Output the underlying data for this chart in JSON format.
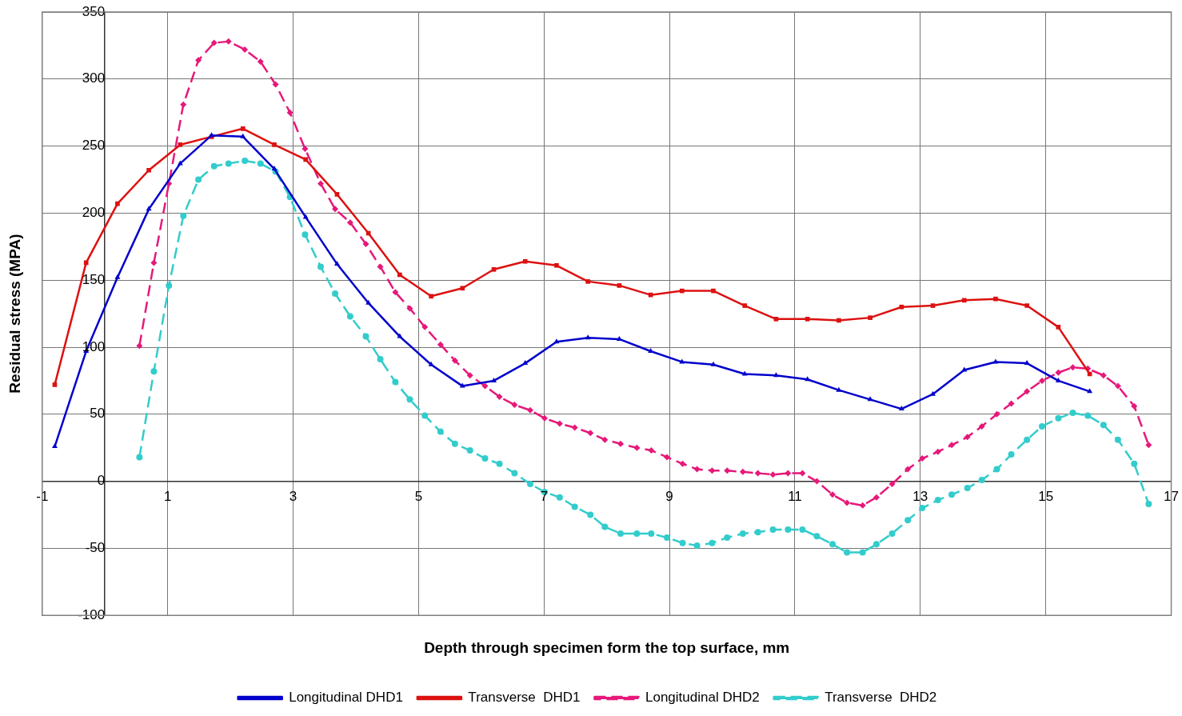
{
  "chart_data": {
    "type": "line",
    "xlabel": "Depth through specimen form the top surface, mm",
    "ylabel": "Residual stress (MPA)",
    "xlim": [
      -1,
      17
    ],
    "xticks": [
      -1,
      1,
      3,
      5,
      7,
      9,
      11,
      13,
      15,
      17
    ],
    "ylim": [
      -100,
      350
    ],
    "yticks": [
      -100,
      -50,
      0,
      50,
      100,
      150,
      200,
      250,
      300,
      350
    ],
    "grid": true,
    "legend": "bottom",
    "series": [
      {
        "name": "Longitudinal DHD1",
        "color": "#0000cc",
        "marker": "triangle",
        "line_style": "solid",
        "x": [
          -0.8,
          -0.3,
          0.2,
          0.7,
          1.2,
          1.7,
          2.2,
          2.7,
          3.2,
          3.7,
          4.2,
          4.7,
          5.2,
          5.7,
          6.2,
          6.7,
          7.2,
          7.7,
          8.2,
          8.7,
          9.2,
          9.7,
          10.2,
          10.7,
          11.2,
          11.7,
          12.2,
          12.7,
          13.2,
          13.7,
          14.2,
          14.7,
          15.2,
          15.7
        ],
        "values": [
          26,
          97,
          152,
          203,
          237,
          258,
          257,
          233,
          197,
          162,
          133,
          108,
          87,
          71,
          75,
          88,
          104,
          107,
          106,
          97,
          89,
          87,
          80,
          79,
          76,
          68,
          61,
          54,
          65,
          83,
          89,
          88,
          75,
          67
        ]
      },
      {
        "name": "Transverse  DHD1",
        "color": "#dd1111",
        "marker": "square",
        "line_style": "solid",
        "x": [
          -0.8,
          -0.3,
          0.2,
          0.7,
          1.2,
          1.7,
          2.2,
          2.7,
          3.2,
          3.7,
          4.2,
          4.7,
          5.2,
          5.7,
          6.2,
          6.7,
          7.2,
          7.7,
          8.2,
          8.7,
          9.2,
          9.7,
          10.2,
          10.7,
          11.2,
          11.7,
          12.2,
          12.7,
          13.2,
          13.7,
          14.2,
          14.7,
          15.2,
          15.7
        ],
        "values": [
          72,
          163,
          207,
          232,
          251,
          257,
          263,
          251,
          240,
          214,
          185,
          154,
          138,
          144,
          158,
          164,
          161,
          149,
          146,
          139,
          142,
          142,
          131,
          121,
          121,
          120,
          122,
          130,
          131,
          135,
          136,
          131,
          115,
          80
        ]
      },
      {
        "name": "Longitudinal DHD2",
        "color": "#e6197a",
        "marker": "diamond",
        "line_style": "dashed",
        "x": [
          0.55,
          0.78,
          1.02,
          1.25,
          1.49,
          1.74,
          1.97,
          2.23,
          2.48,
          2.72,
          2.95,
          3.19,
          3.44,
          3.67,
          3.91,
          4.16,
          4.39,
          4.63,
          4.86,
          5.1,
          5.35,
          5.58,
          5.82,
          6.06,
          6.29,
          6.53,
          6.78,
          7.01,
          7.25,
          7.49,
          7.74,
          7.97,
          8.22,
          8.48,
          8.71,
          8.96,
          9.21,
          9.44,
          9.68,
          9.92,
          10.17,
          10.41,
          10.65,
          10.89,
          11.12,
          11.35,
          11.6,
          11.83,
          12.08,
          12.3,
          12.55,
          12.8,
          13.03,
          13.28,
          13.5,
          13.75,
          13.98,
          14.22,
          14.45,
          14.7,
          14.94,
          15.2,
          15.43,
          15.67,
          15.92,
          16.15,
          16.41,
          16.64
        ],
        "values": [
          101,
          163,
          222,
          281,
          314,
          327,
          328,
          322,
          313,
          296,
          275,
          248,
          222,
          203,
          193,
          177,
          160,
          141,
          129,
          115,
          102,
          90,
          79,
          71,
          63,
          57,
          53,
          47,
          43,
          40,
          36,
          31,
          28,
          25,
          23,
          18,
          13,
          9,
          8,
          8,
          7,
          6,
          5,
          6,
          6,
          0,
          -10,
          -16,
          -18,
          -12,
          -2,
          9,
          17,
          22,
          27,
          33,
          41,
          50,
          58,
          67,
          75,
          81,
          85,
          84,
          79,
          71,
          56,
          27
        ]
      },
      {
        "name": "Transverse  DHD2",
        "color": "#33cccc",
        "marker": "circle",
        "line_style": "dashed",
        "x": [
          0.55,
          0.78,
          1.02,
          1.25,
          1.49,
          1.74,
          1.97,
          2.23,
          2.48,
          2.72,
          2.95,
          3.19,
          3.44,
          3.67,
          3.91,
          4.16,
          4.39,
          4.63,
          4.86,
          5.1,
          5.35,
          5.58,
          5.82,
          6.06,
          6.29,
          6.53,
          6.78,
          7.01,
          7.25,
          7.49,
          7.74,
          7.97,
          8.22,
          8.48,
          8.71,
          8.96,
          9.21,
          9.44,
          9.68,
          9.92,
          10.17,
          10.41,
          10.65,
          10.89,
          11.12,
          11.35,
          11.6,
          11.83,
          12.08,
          12.3,
          12.55,
          12.8,
          13.03,
          13.28,
          13.5,
          13.75,
          13.98,
          14.22,
          14.45,
          14.7,
          14.94,
          15.2,
          15.43,
          15.67,
          15.92,
          16.15,
          16.41,
          16.64
        ],
        "values": [
          18,
          82,
          146,
          198,
          225,
          235,
          237,
          239,
          237,
          231,
          212,
          184,
          160,
          140,
          123,
          108,
          91,
          74,
          61,
          49,
          37,
          28,
          23,
          17,
          13,
          6,
          -2,
          -8,
          -12,
          -19,
          -25,
          -34,
          -39,
          -39,
          -39,
          -42,
          -46,
          -48,
          -46,
          -42,
          -39,
          -38,
          -36,
          -36,
          -36,
          -41,
          -47,
          -53,
          -53,
          -47,
          -39,
          -29,
          -20,
          -14,
          -10,
          -5,
          1,
          9,
          20,
          31,
          41,
          47,
          51,
          49,
          42,
          31,
          13,
          -17
        ]
      }
    ]
  }
}
